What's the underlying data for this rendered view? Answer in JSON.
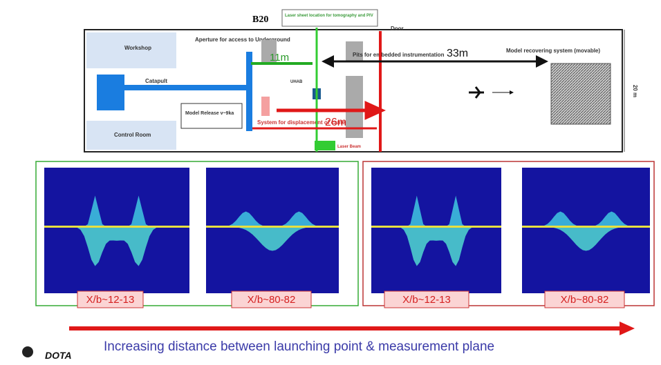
{
  "header": {
    "title": "B20"
  },
  "plan": {
    "laser_sheet": "Laser sheet location for tomography and PIV",
    "door": "Door",
    "workshop": "Workshop",
    "aperture": "Aperture for access to Underground",
    "dist_11": "11m",
    "pits": "Pits for embedded instrumentation",
    "dist_33": "33m",
    "recovery": "Model recovering system (movable)",
    "catapult": "Catapult",
    "release": "Model Release v~9ka",
    "uhab": "UHAB",
    "cameras": "System for displacement of cameras",
    "dist_26": "26m",
    "control": "Control Room",
    "laser_beam": "Laser Beam",
    "width": "20 m"
  },
  "plots": [
    {
      "label": "X/b~12-13"
    },
    {
      "label": "X/b~80-82"
    },
    {
      "label": "X/b~12-13"
    },
    {
      "label": "X/b~80-82"
    }
  ],
  "footer": {
    "caption": "Increasing distance between launching point & measurement plane",
    "logo": "DOTA"
  }
}
